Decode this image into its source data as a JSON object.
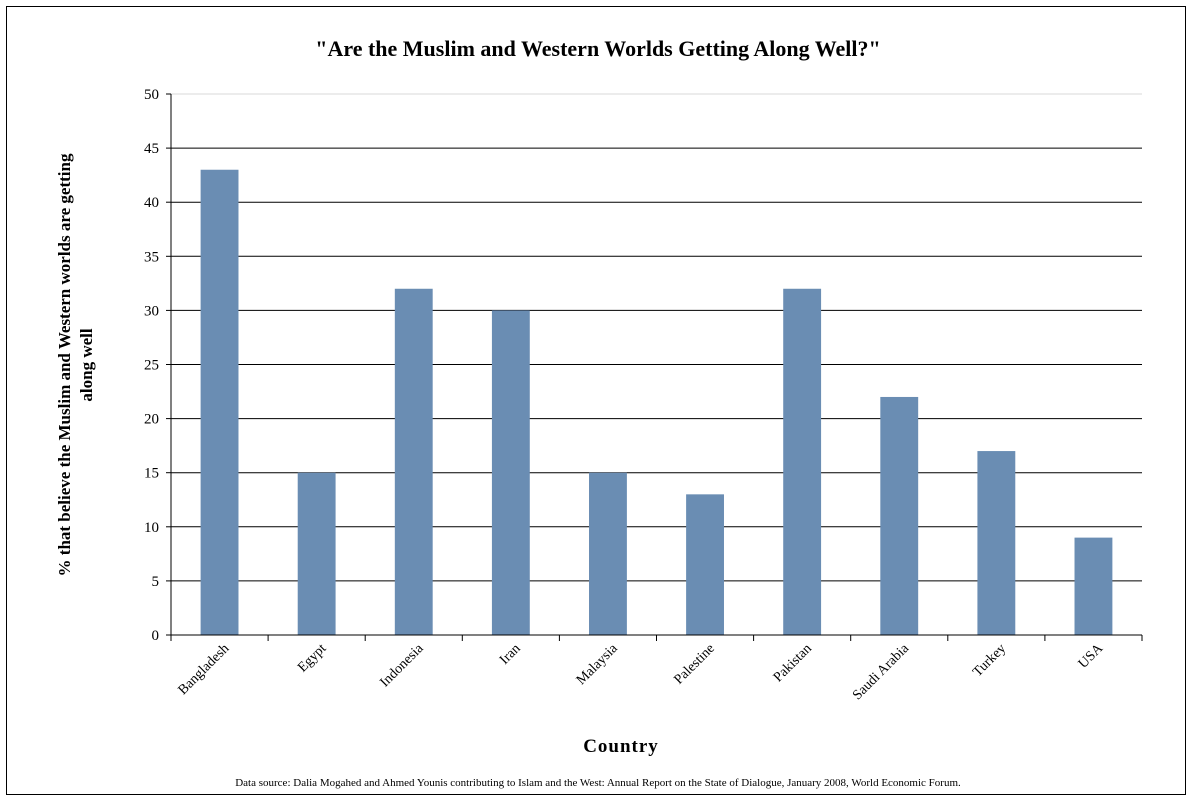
{
  "chart_data": {
    "type": "bar",
    "title": "\"Are the Muslim and Western Worlds Getting Along Well?\"",
    "xlabel": "Country",
    "ylabel_lines": [
      "% that believe the Muslim and Western worlds are getting",
      "along well"
    ],
    "categories": [
      "Bangladesh",
      "Egypt",
      "Indonesia",
      "Iran",
      "Malaysia",
      "Palestine",
      "Pakistan",
      "Saudi Arabia",
      "Turkey",
      "USA"
    ],
    "values": [
      43,
      15,
      32,
      30,
      15,
      13,
      32,
      22,
      17,
      9
    ],
    "ylim": [
      0,
      50
    ],
    "yticks": [
      0,
      5,
      10,
      15,
      20,
      25,
      30,
      35,
      40,
      45,
      50
    ],
    "grid": true,
    "legend": "none",
    "bar_color": "#6a8db3",
    "source_note": "Data source: Dalia Mogahed and Ahmed Younis contributing to Islam and the West: Annual Report on the State of Dialogue, January 2008, World Economic Forum."
  }
}
